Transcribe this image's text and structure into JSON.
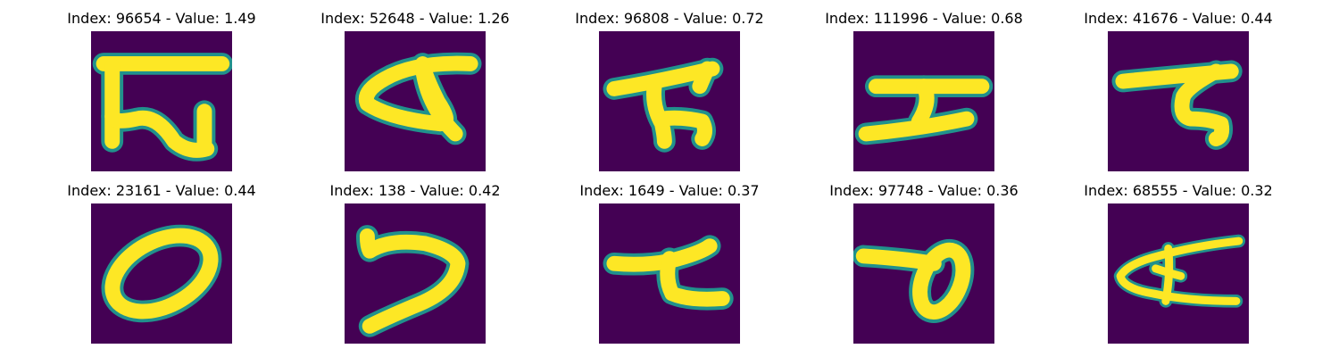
{
  "colors": {
    "background": "#440154",
    "stroke": "#fde725",
    "edge": "#21918c",
    "page": "#ffffff"
  },
  "samples": [
    {
      "title": "Index: 96654 - Value: 1.49",
      "glyph": "glyph-1"
    },
    {
      "title": "Index: 52648 - Value: 1.26",
      "glyph": "glyph-2"
    },
    {
      "title": "Index: 96808 - Value: 0.72",
      "glyph": "glyph-3"
    },
    {
      "title": "Index: 111996 - Value: 0.68",
      "glyph": "glyph-4"
    },
    {
      "title": "Index: 41676 - Value: 0.44",
      "glyph": "glyph-5"
    },
    {
      "title": "Index: 23161 - Value: 0.44",
      "glyph": "glyph-6"
    },
    {
      "title": "Index: 138 - Value: 0.42",
      "glyph": "glyph-7"
    },
    {
      "title": "Index: 1649 - Value: 0.37",
      "glyph": "glyph-8"
    },
    {
      "title": "Index: 97748 - Value: 0.36",
      "glyph": "glyph-9"
    },
    {
      "title": "Index: 68555 - Value: 0.32",
      "glyph": "glyph-10"
    }
  ]
}
